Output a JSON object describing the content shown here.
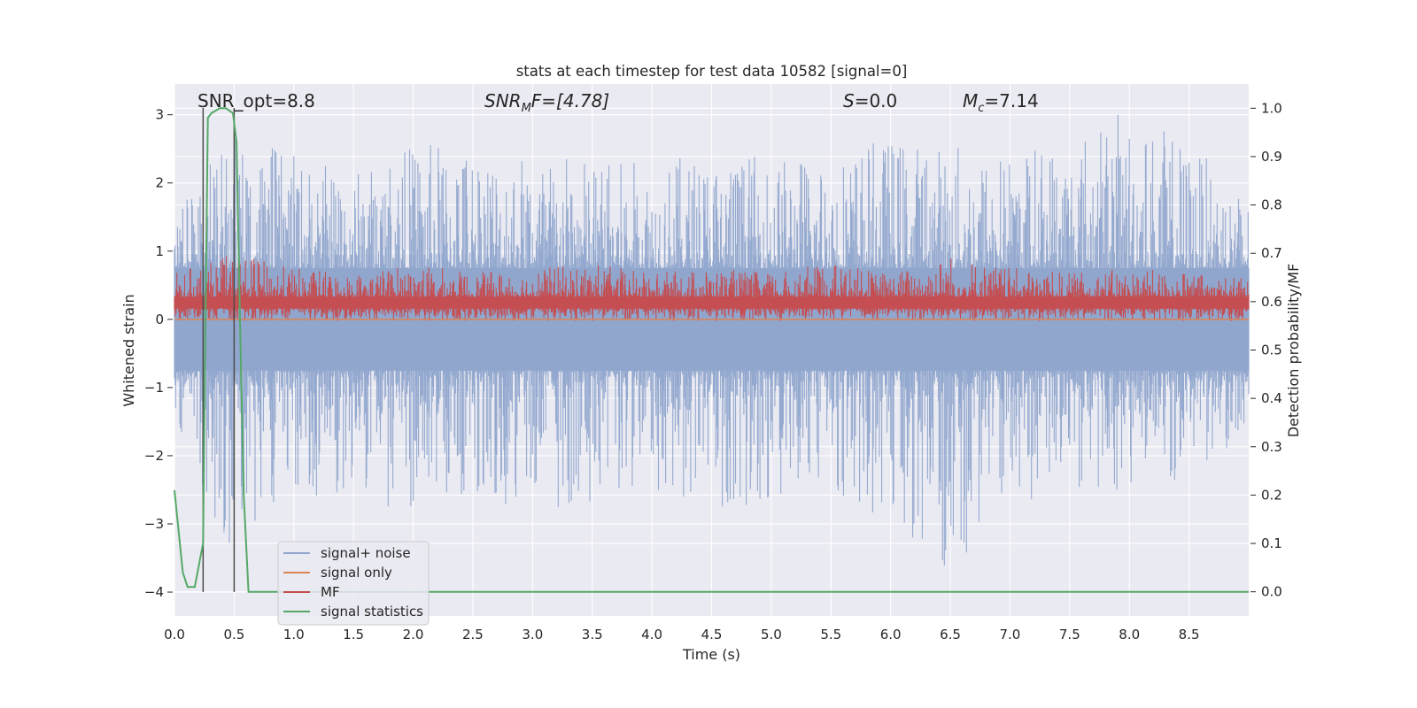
{
  "chart_data": {
    "type": "line",
    "title": "stats at each timestep for test data 10582 [signal=0]",
    "xlabel": "Time (s)",
    "ylabel": "Whitened strain",
    "ylabel_right": "Detection probability/MF",
    "xlim": [
      0.0,
      9.0
    ],
    "ylim": [
      -4.35,
      3.45
    ],
    "ylim_right": [
      -0.05,
      1.05
    ],
    "x_ticks": [
      "0.0",
      "0.5",
      "1.0",
      "1.5",
      "2.0",
      "2.5",
      "3.0",
      "3.5",
      "4.0",
      "4.5",
      "5.0",
      "5.5",
      "6.0",
      "6.5",
      "7.0",
      "7.5",
      "8.0",
      "8.5"
    ],
    "y_ticks": [
      "−4",
      "−3",
      "−2",
      "−1",
      "0",
      "1",
      "2",
      "3"
    ],
    "y_ticks_right": [
      "0.0",
      "0.1",
      "0.2",
      "0.3",
      "0.4",
      "0.5",
      "0.6",
      "0.7",
      "0.8",
      "0.9",
      "1.0"
    ],
    "grid": true,
    "legend_position": "bottom-left",
    "annotations": {
      "snr_opt": "SNR_opt=8.8",
      "snr_mf_base": "SNR",
      "snr_mf_sub": "M",
      "snr_mf_rest": "F=[4.78]",
      "s_italic": "S",
      "s_rest": "=0.0",
      "mc_base": "M",
      "mc_sub": "c",
      "mc_rest": "=7.14"
    },
    "series": [
      {
        "name": "signal+ noise",
        "color": "#8fa5cc",
        "axis": "left",
        "style": "dense noise",
        "upper_envelope": {
          "x": [
            0.0,
            0.5,
            1.0,
            1.5,
            2.0,
            2.5,
            3.0,
            3.5,
            4.0,
            4.5,
            5.0,
            5.5,
            6.0,
            6.5,
            7.0,
            7.5,
            8.0,
            8.5,
            9.0
          ],
          "y": [
            1.6,
            2.8,
            2.4,
            2.2,
            2.6,
            2.7,
            2.5,
            2.4,
            2.3,
            2.5,
            2.4,
            2.5,
            2.7,
            2.6,
            2.5,
            2.8,
            3.1,
            2.6,
            1.8
          ]
        },
        "lower_envelope": {
          "x": [
            0.0,
            0.5,
            1.0,
            1.5,
            2.0,
            2.5,
            3.0,
            3.5,
            4.0,
            4.5,
            5.0,
            5.5,
            6.0,
            6.5,
            7.0,
            7.5,
            8.0,
            8.5,
            9.0
          ],
          "y": [
            -1.7,
            -3.5,
            -2.6,
            -2.6,
            -2.9,
            -2.6,
            -2.8,
            -2.7,
            -2.5,
            -3.0,
            -2.6,
            -2.7,
            -2.9,
            -4.0,
            -2.7,
            -2.6,
            -2.5,
            -2.4,
            -1.6
          ]
        }
      },
      {
        "name": "signal only",
        "color": "#dd8452",
        "axis": "left",
        "x": [
          0.0,
          9.0
        ],
        "y": [
          0.0,
          0.0
        ]
      },
      {
        "name": "MF",
        "color": "#c44e52",
        "axis": "right",
        "style": "dense noise",
        "x": [
          0.0,
          0.5,
          1.0,
          1.5,
          2.0,
          2.5,
          3.0,
          3.5,
          4.0,
          4.5,
          5.0,
          5.5,
          6.0,
          6.5,
          7.0,
          7.5,
          8.0,
          8.5,
          9.0
        ],
        "y_upper": [
          0.66,
          0.7,
          0.67,
          0.66,
          0.68,
          0.66,
          0.67,
          0.68,
          0.66,
          0.67,
          0.66,
          0.68,
          0.66,
          0.7,
          0.67,
          0.66,
          0.67,
          0.66,
          0.65
        ],
        "y_lower": [
          0.56,
          0.56,
          0.56,
          0.56,
          0.56,
          0.56,
          0.56,
          0.56,
          0.56,
          0.56,
          0.56,
          0.56,
          0.56,
          0.56,
          0.56,
          0.56,
          0.56,
          0.56,
          0.56
        ]
      },
      {
        "name": "signal statistics",
        "color": "#55a868",
        "axis": "right",
        "x": [
          0.0,
          0.07,
          0.11,
          0.17,
          0.24,
          0.25,
          0.28,
          0.31,
          0.38,
          0.43,
          0.49,
          0.52,
          0.55,
          0.58,
          0.62,
          0.68,
          5.5,
          5.7,
          9.0
        ],
        "y": [
          0.21,
          0.04,
          0.01,
          0.01,
          0.1,
          0.35,
          0.98,
          0.99,
          1.0,
          1.0,
          0.99,
          0.93,
          0.55,
          0.2,
          0.0,
          0.0,
          0.0,
          0.0,
          0.0
        ]
      }
    ],
    "vertical_lines": [
      0.24,
      0.5
    ]
  }
}
